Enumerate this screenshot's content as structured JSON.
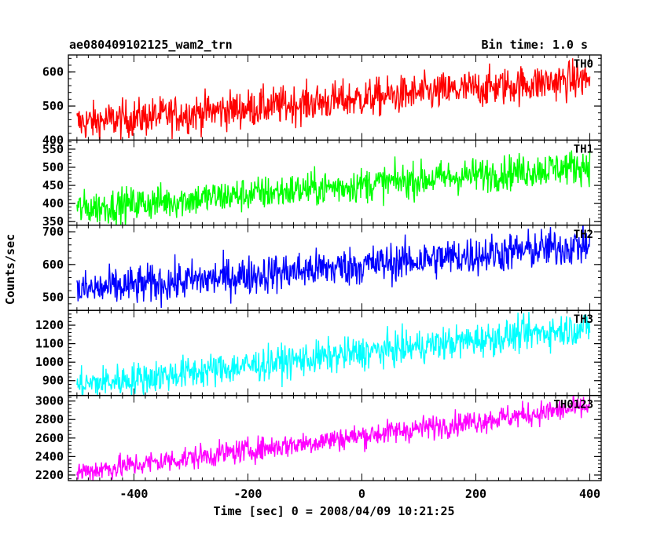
{
  "header": {
    "title": "ae080409102125_wam2_trn",
    "bin_time": "Bin time: 1.0 s"
  },
  "chart_data": {
    "type": "line",
    "xlabel": "Time [sec] 0 = 2008/04/09 10:21:25",
    "ylabel": "Counts/sec",
    "xlim": [
      -515,
      420
    ],
    "xticks": [
      -400,
      -200,
      0,
      200,
      400
    ],
    "x_range": [
      -500,
      400
    ],
    "bin_time": 1.0,
    "panels": [
      {
        "name": "TH0",
        "color": "#ff0000",
        "ylim": [
          400,
          650
        ],
        "yticks": [
          400,
          500,
          600
        ],
        "trend_start": 450,
        "trend_end": 580,
        "noise": 28
      },
      {
        "name": "TH1",
        "color": "#00ff00",
        "ylim": [
          340,
          575
        ],
        "yticks": [
          350,
          400,
          450,
          500,
          550
        ],
        "trend_start": 385,
        "trend_end": 505,
        "noise": 24
      },
      {
        "name": "TH2",
        "color": "#0000ff",
        "ylim": [
          460,
          720
        ],
        "yticks": [
          500,
          600,
          700
        ],
        "trend_start": 520,
        "trend_end": 660,
        "noise": 30
      },
      {
        "name": "TH3",
        "color": "#00ffff",
        "ylim": [
          820,
          1280
        ],
        "yticks": [
          900,
          1000,
          1100,
          1200
        ],
        "trend_start": 875,
        "trend_end": 1190,
        "noise": 45
      },
      {
        "name": "TH0123",
        "color": "#ff00ff",
        "ylim": [
          2140,
          3060
        ],
        "yticks": [
          2200,
          2400,
          2600,
          2800,
          3000
        ],
        "trend_start": 2230,
        "trend_end": 2940,
        "noise": 65
      }
    ]
  }
}
